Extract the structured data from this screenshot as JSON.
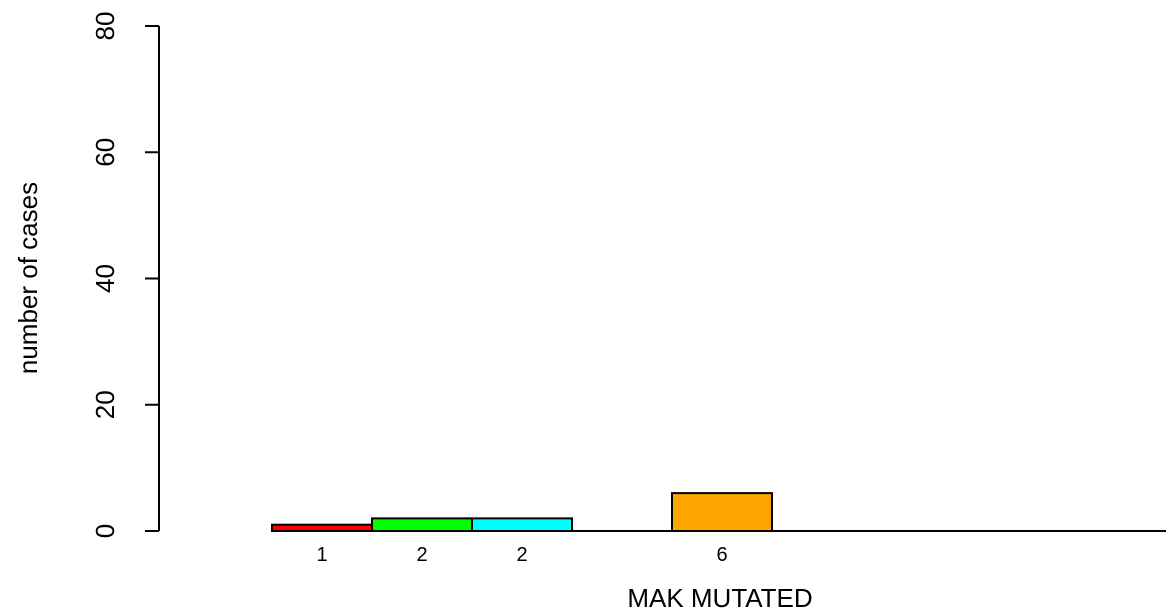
{
  "chart_data": {
    "type": "bar",
    "title": "",
    "xlabel": "MAK MUTATED",
    "ylabel": "number of cases",
    "ylim": [
      0,
      80
    ],
    "yticks": [
      0,
      20,
      40,
      60,
      80
    ],
    "grid": false,
    "bars": [
      {
        "value": 1,
        "label": "1",
        "color": "#ff0000"
      },
      {
        "value": 2,
        "label": "2",
        "color": "#00ff00"
      },
      {
        "value": 2,
        "label": "2",
        "color": "#00ffff"
      },
      {
        "value": 0,
        "label": "",
        "color": "#0000ff"
      },
      {
        "value": 6,
        "label": "6",
        "color": "#ffa500"
      },
      {
        "value": 0,
        "label": "",
        "color": "#ff00ff"
      },
      {
        "value": 0,
        "label": "",
        "color": "#808080"
      },
      {
        "value": 0,
        "label": "",
        "color": "#ffff00"
      }
    ]
  }
}
